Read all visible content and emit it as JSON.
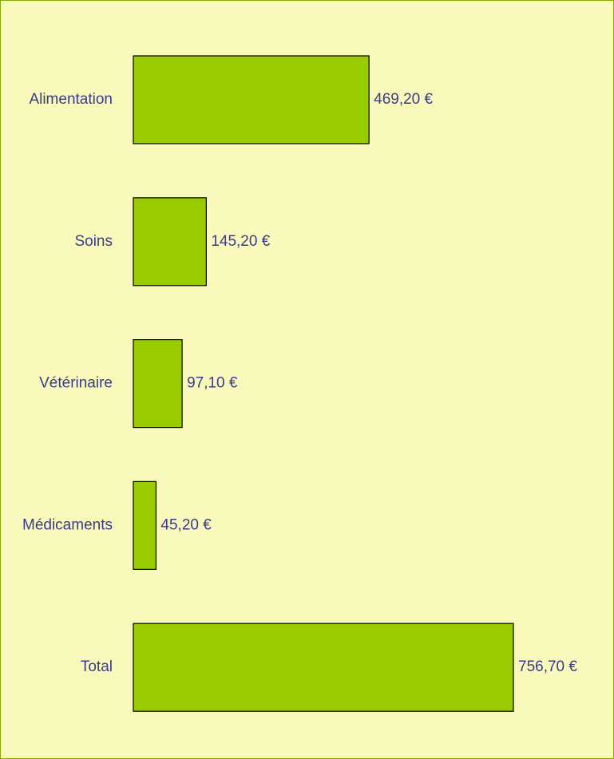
{
  "chart_data": {
    "type": "bar",
    "orientation": "horizontal",
    "categories": [
      "Alimentation",
      "Soins",
      "Vétérinaire",
      "Médicaments",
      "Total"
    ],
    "values": [
      469.2,
      145.2,
      97.1,
      45.2,
      756.7
    ],
    "value_labels": [
      "469,20 €",
      "145,20 €",
      "97,10 €",
      "45,20 €",
      "756,70 €"
    ],
    "color": "#99cc00"
  }
}
